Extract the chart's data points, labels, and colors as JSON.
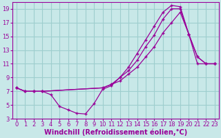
{
  "xlabel": "Windchill (Refroidissement éolien,°C)",
  "bg_color": "#c8e8e8",
  "line_color": "#990099",
  "xlim": [
    -0.5,
    23.5
  ],
  "ylim": [
    3,
    20
  ],
  "xticks": [
    0,
    1,
    2,
    3,
    4,
    5,
    6,
    7,
    8,
    9,
    10,
    11,
    12,
    13,
    14,
    15,
    16,
    17,
    18,
    19,
    20,
    21,
    22,
    23
  ],
  "yticks": [
    3,
    5,
    7,
    9,
    11,
    13,
    15,
    17,
    19
  ],
  "series1_x": [
    0,
    1,
    2,
    3,
    4,
    5,
    6,
    7,
    8,
    9,
    10,
    11,
    12,
    13,
    14,
    15,
    16,
    17,
    18,
    19,
    20,
    21,
    22,
    23
  ],
  "series1_y": [
    7.5,
    7.0,
    7.0,
    7.0,
    6.5,
    4.8,
    4.3,
    3.8,
    3.7,
    5.2,
    7.3,
    7.8,
    9.0,
    10.5,
    12.5,
    14.5,
    16.5,
    18.5,
    19.5,
    19.3,
    15.3,
    11.0,
    11.0,
    11.0
  ],
  "series2_x": [
    0,
    1,
    2,
    3,
    10,
    11,
    12,
    13,
    14,
    15,
    16,
    17,
    18,
    19,
    20,
    21,
    22,
    23
  ],
  "series2_y": [
    7.5,
    7.0,
    7.0,
    7.0,
    7.5,
    8.0,
    8.5,
    9.5,
    10.5,
    12.0,
    13.5,
    15.5,
    17.0,
    18.5,
    15.3,
    12.0,
    11.0,
    11.0
  ],
  "series3_x": [
    0,
    1,
    2,
    3,
    10,
    11,
    12,
    13,
    14,
    15,
    16,
    17,
    18,
    19,
    20,
    21,
    22,
    23
  ],
  "series3_y": [
    7.5,
    7.0,
    7.0,
    7.0,
    7.5,
    8.0,
    9.0,
    10.0,
    11.5,
    13.5,
    15.2,
    17.5,
    19.0,
    19.0,
    15.3,
    12.0,
    11.0,
    11.0
  ],
  "grid_color": "#9ecece",
  "xlabel_fontsize": 7,
  "tick_fontsize": 6.0
}
